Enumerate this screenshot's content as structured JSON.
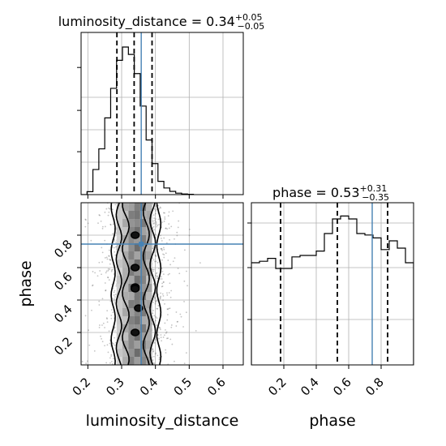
{
  "chart_data": [
    {
      "type": "histogram",
      "panel": "top-left",
      "parameter": "luminosity_distance",
      "title": {
        "prefix": "luminosity_distance = 0.34",
        "plus": "+0.05",
        "minus": "−0.05"
      },
      "xlim": [
        0.18,
        0.66
      ],
      "bin_edges": [
        0.18,
        0.1975,
        0.215,
        0.2325,
        0.25,
        0.2675,
        0.285,
        0.3025,
        0.32,
        0.3375,
        0.355,
        0.3725,
        0.39,
        0.4075,
        0.425,
        0.4425,
        0.46,
        0.4775,
        0.495,
        0.5125
      ],
      "density": [
        0.0,
        0.02,
        0.17,
        0.31,
        0.52,
        0.72,
        0.91,
        1.0,
        0.95,
        0.82,
        0.6,
        0.37,
        0.21,
        0.09,
        0.045,
        0.022,
        0.01,
        0.004,
        0.002
      ],
      "quantile_lines": [
        0.286,
        0.337,
        0.39
      ],
      "truth": 0.358,
      "grid": true
    },
    {
      "type": "histogram",
      "panel": "bottom-right",
      "parameter": "phase",
      "title": {
        "prefix": "phase = 0.53",
        "plus": "+0.31",
        "minus": "−0.35"
      },
      "xlim": [
        0.0,
        1.0
      ],
      "x_ticks": [
        "0.2",
        "0.4",
        "0.6",
        "0.8"
      ],
      "x_tick_values": [
        0.2,
        0.4,
        0.6,
        0.8
      ],
      "xlabel": "phase",
      "bin_edges": [
        0.0,
        0.05,
        0.1,
        0.15,
        0.2,
        0.25,
        0.3,
        0.35,
        0.4,
        0.45,
        0.5,
        0.55,
        0.6,
        0.65,
        0.7,
        0.75,
        0.8,
        0.85,
        0.9,
        0.95,
        1.0
      ],
      "density": [
        0.7,
        0.71,
        0.73,
        0.66,
        0.66,
        0.74,
        0.75,
        0.75,
        0.78,
        0.9,
        1.0,
        1.02,
        1.0,
        0.9,
        0.89,
        0.87,
        0.79,
        0.85,
        0.8,
        0.7
      ],
      "quantile_lines": [
        0.18,
        0.53,
        0.84
      ],
      "truth": 0.745,
      "grid": true
    },
    {
      "type": "scatter",
      "panel": "bottom-left",
      "description_note": "2D posterior: luminosity_distance vs phase, gray density with black contours",
      "xlim": [
        0.18,
        0.66
      ],
      "ylim": [
        0.0,
        1.0
      ],
      "x_ticks": [
        "0.2",
        "0.3",
        "0.4",
        "0.5",
        "0.6"
      ],
      "x_tick_values": [
        0.2,
        0.3,
        0.4,
        0.5,
        0.6
      ],
      "y_ticks": [
        "0.2",
        "0.4",
        "0.6",
        "0.8"
      ],
      "y_tick_values": [
        0.2,
        0.4,
        0.6,
        0.8
      ],
      "xlabel": "luminosity_distance",
      "ylabel": "phase",
      "truth": {
        "x": 0.358,
        "y": 0.745
      },
      "peaks": [
        {
          "x": 0.34,
          "y": 0.8
        },
        {
          "x": 0.34,
          "y": 0.6
        },
        {
          "x": 0.34,
          "y": 0.48
        },
        {
          "x": 0.34,
          "y": 0.47
        },
        {
          "x": 0.34,
          "y": 0.2
        },
        {
          "x": 0.35,
          "y": 0.35
        }
      ],
      "grid": true
    }
  ],
  "colors": {
    "truth": "#4682b4",
    "line": "#000000",
    "grid": "#b0b0b0"
  }
}
